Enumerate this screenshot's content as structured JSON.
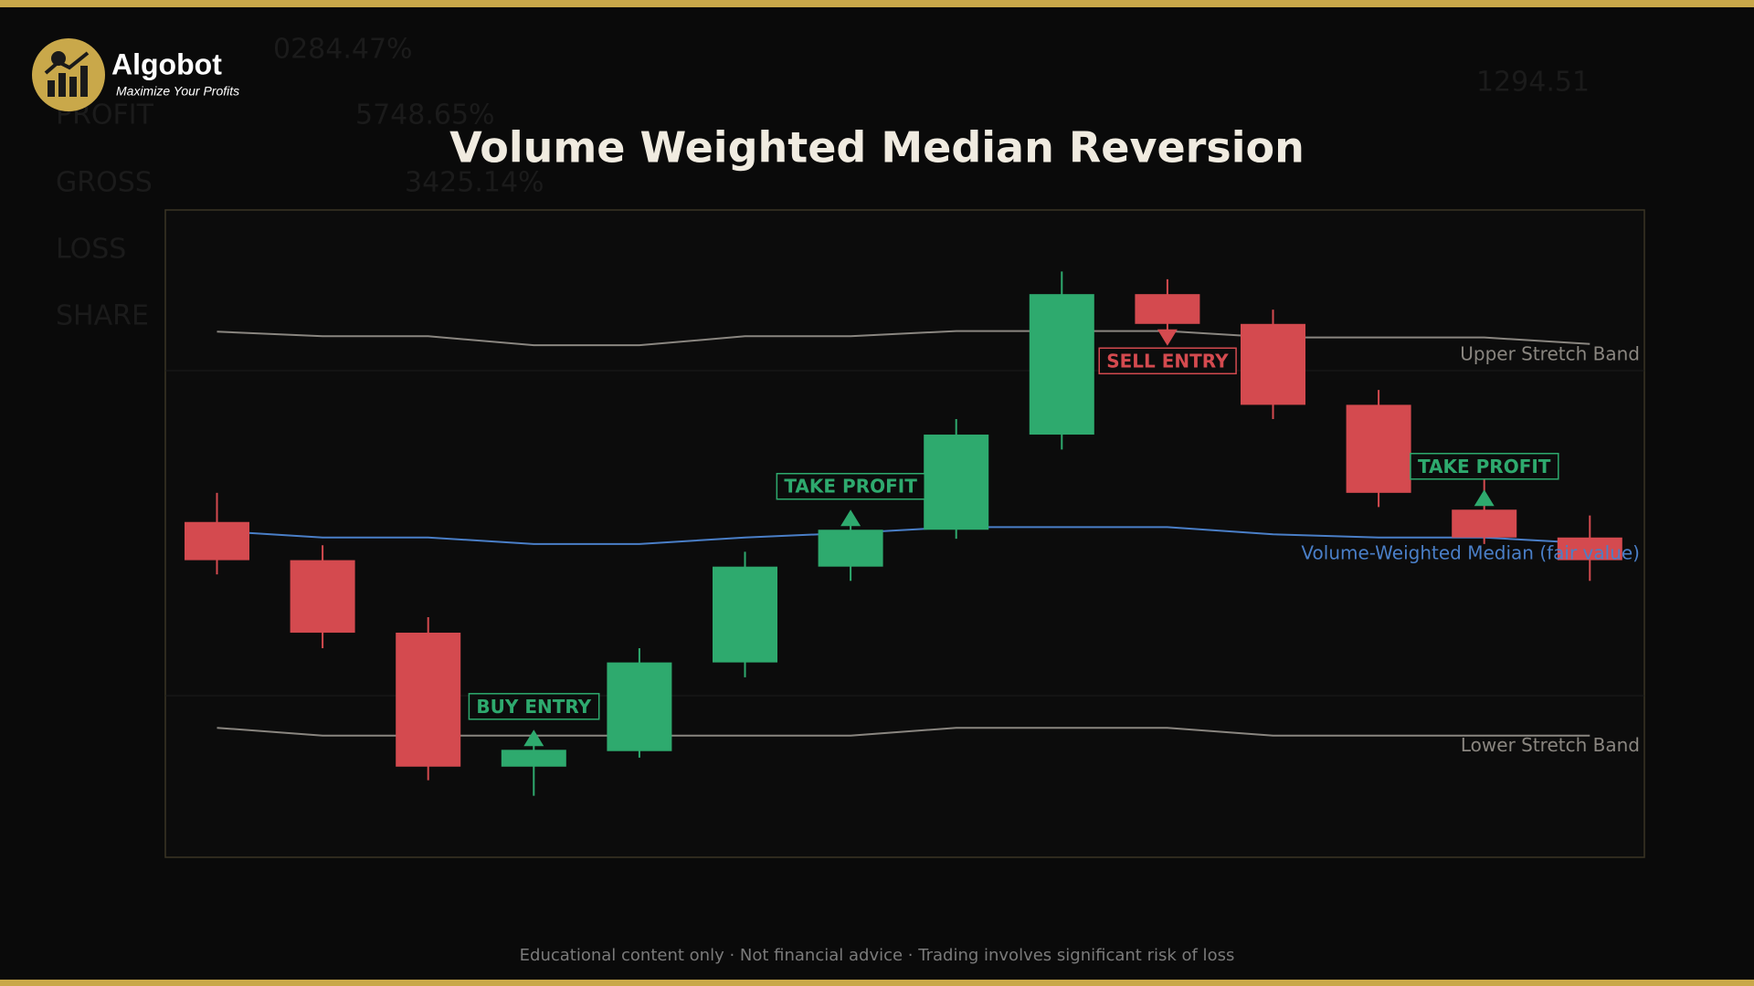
{
  "header": {
    "brand": "Algobot",
    "tagline": "Maximize Your Profits"
  },
  "background": {
    "labels": [
      "0284.47%",
      "PROFIT",
      "5748.65%",
      "GROSS",
      "3425.14%",
      "LOSS",
      "SHARE",
      "1294.51"
    ]
  },
  "chart_data": {
    "type": "candlestick",
    "title": "Volume Weighted Median Reversion",
    "categories": [
      null,
      null,
      null,
      null,
      null,
      null,
      null,
      null,
      null,
      null,
      null,
      null,
      null,
      null
    ],
    "open": [
      51.8,
      45.9,
      34.7,
      14.0,
      16.4,
      30.1,
      44.9,
      50.6,
      65.3,
      87.0,
      82.4,
      69.9,
      53.7,
      49.4
    ],
    "high": [
      56.3,
      48.2,
      37.1,
      17.3,
      32.3,
      47.2,
      52.2,
      67.7,
      90.5,
      89.3,
      84.6,
      72.2,
      58.5,
      52.8
    ],
    "low": [
      43.7,
      32.3,
      11.9,
      9.5,
      15.4,
      27.8,
      42.7,
      49.2,
      63.0,
      81.5,
      67.7,
      54.1,
      48.4,
      42.7
    ],
    "close": [
      45.9,
      34.7,
      14.0,
      16.6,
      30.1,
      44.9,
      50.6,
      65.3,
      87.0,
      82.4,
      69.9,
      56.3,
      49.4,
      45.9
    ],
    "up_color": "#2eaa6e",
    "down_color": "#d44a4f",
    "ylim": [
      0,
      100
    ],
    "series": [
      {
        "name": "Upper Stretch Band",
        "color": "#8a8680",
        "values": [
          81.2,
          80.5,
          80.5,
          79.1,
          79.1,
          80.5,
          80.5,
          81.3,
          81.3,
          81.3,
          80.3,
          80.3,
          80.3,
          79.3
        ]
      },
      {
        "name": "Volume-Weighted Median (fair value)",
        "color": "#4a7fc8",
        "values": [
          50.4,
          49.4,
          49.4,
          48.4,
          48.4,
          49.4,
          50.1,
          51.0,
          51.0,
          51.0,
          49.9,
          49.4,
          49.4,
          48.5
        ]
      },
      {
        "name": "Lower Stretch Band",
        "color": "#8a8680",
        "values": [
          20.0,
          18.8,
          18.8,
          18.8,
          18.8,
          18.8,
          18.8,
          20.0,
          20.0,
          20.0,
          18.8,
          18.8,
          18.8,
          18.8
        ]
      }
    ],
    "annotations": [
      {
        "text": "BUY ENTRY",
        "index": 3,
        "direction": "up",
        "color": "#2eaa6e"
      },
      {
        "text": "TAKE PROFIT",
        "index": 6,
        "direction": "up",
        "color": "#2eaa6e"
      },
      {
        "text": "SELL ENTRY",
        "index": 9,
        "direction": "down",
        "color": "#d44a4f"
      },
      {
        "text": "TAKE PROFIT",
        "index": 12,
        "direction": "up",
        "color": "#2eaa6e"
      }
    ],
    "footer": "Educational content only · Not financial advice · Trading involves significant risk of loss"
  }
}
